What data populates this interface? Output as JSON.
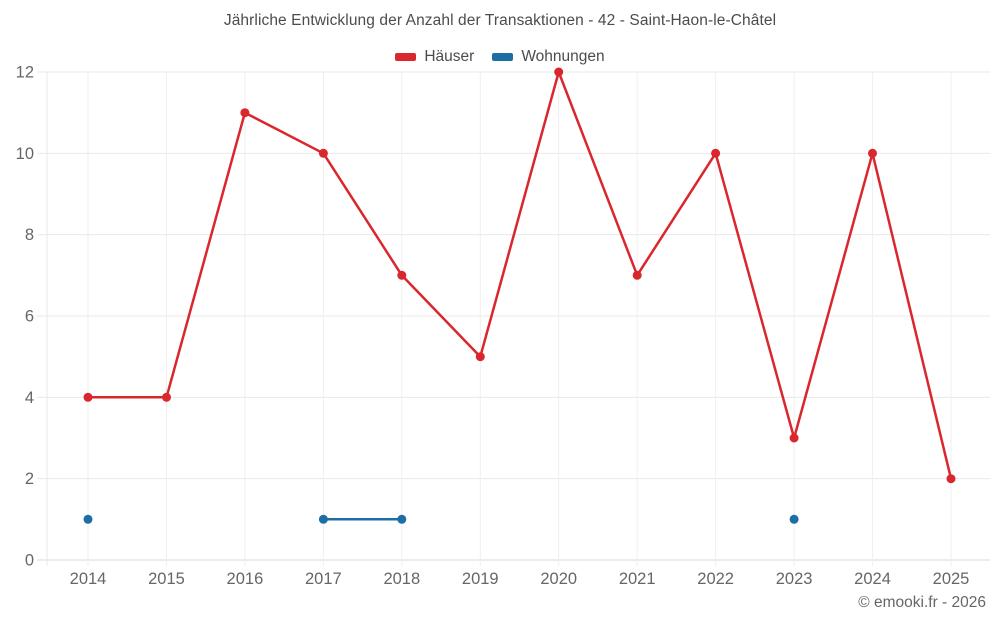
{
  "title": "Jährliche Entwicklung der Anzahl der Transaktionen - 42 - Saint-Haon-le-Châtel",
  "legend": [
    {
      "label": "Häuser",
      "color": "#d9272d"
    },
    {
      "label": "Wohnungen",
      "color": "#1c6ea4"
    }
  ],
  "footer": {
    "copyright": "© emooki.fr - 2026"
  },
  "colors": {
    "grid_horizontal": "#e9e9e9",
    "grid_vertical": "#efefef",
    "axis_line": "#d8d8d8",
    "tick_text": "#666666",
    "title_text": "#4c4c4c"
  },
  "chart_data": {
    "type": "line",
    "title": "Jährliche Entwicklung der Anzahl der Transaktionen - 42 - Saint-Haon-le-Châtel",
    "x": [
      2014,
      2015,
      2016,
      2017,
      2018,
      2019,
      2020,
      2021,
      2022,
      2023,
      2024,
      2025
    ],
    "series": [
      {
        "name": "Häuser",
        "color": "#d9272d",
        "values": [
          4,
          4,
          11,
          10,
          7,
          5,
          12,
          7,
          10,
          3,
          10,
          2
        ]
      },
      {
        "name": "Wohnungen",
        "color": "#1c6ea4",
        "values": [
          1,
          null,
          null,
          1,
          1,
          null,
          null,
          null,
          null,
          1,
          null,
          null
        ]
      }
    ],
    "xlabel": "",
    "ylabel": "",
    "ylim": [
      0,
      12
    ],
    "yticks": [
      0,
      2,
      4,
      6,
      8,
      10,
      12
    ],
    "grid": true,
    "legend_position": "top",
    "marker": "circle"
  }
}
